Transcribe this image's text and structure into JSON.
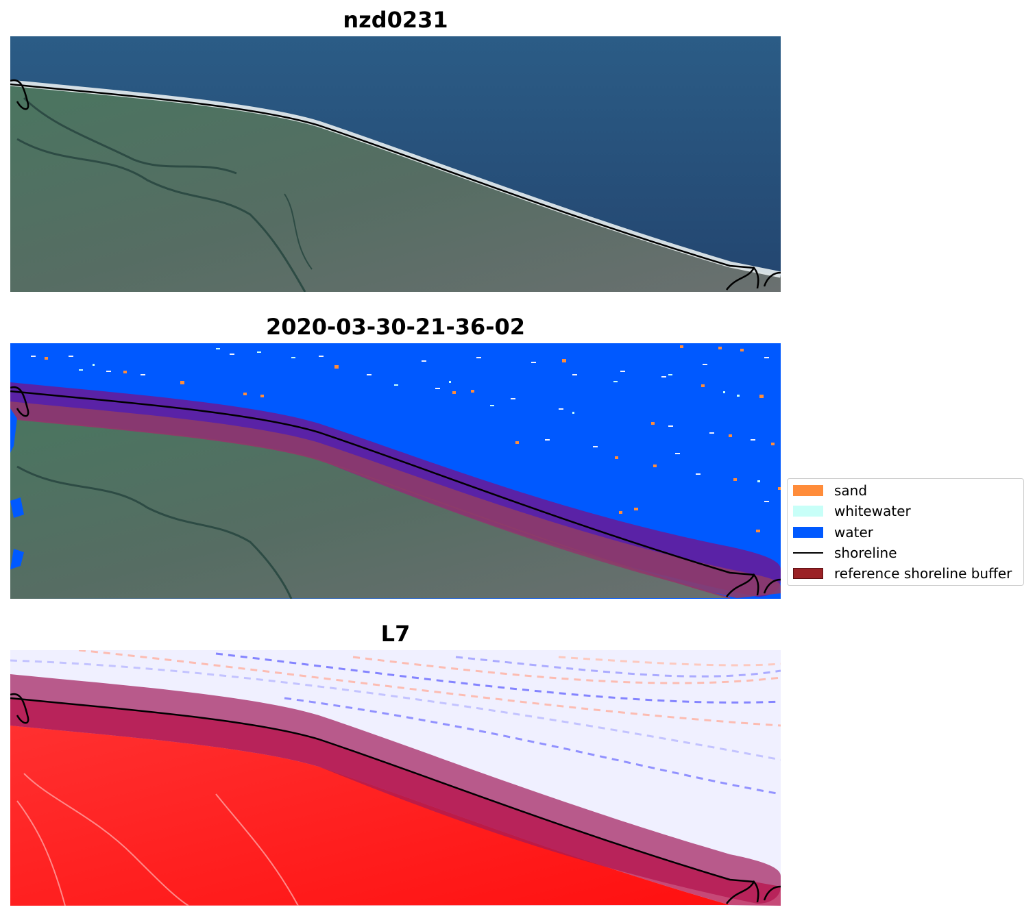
{
  "panels": [
    {
      "title": "nzd0231"
    },
    {
      "title": "2020-03-30-21-36-02"
    },
    {
      "title": "L7"
    }
  ],
  "legend": {
    "items": [
      {
        "label": "sand",
        "color": "#ff8c3a",
        "kind": "patch"
      },
      {
        "label": "whitewater",
        "color": "#c8fff8",
        "kind": "patch"
      },
      {
        "label": "water",
        "color": "#0059ff",
        "kind": "patch"
      },
      {
        "label": "shoreline",
        "color": "#000000",
        "kind": "line"
      },
      {
        "label": "reference shoreline buffer",
        "color": "#9b2226",
        "kind": "patch"
      }
    ]
  },
  "colors": {
    "sea": "#2b4f7e",
    "land": "#4f6e5e",
    "water_class": "#0059ff",
    "buffer_on_water": "#5a22a6",
    "buffer_on_land": "#8d3b6a",
    "index_background": "#f0f0ff",
    "index_land": "#ff2020",
    "index_buffer": "#b8115a"
  }
}
